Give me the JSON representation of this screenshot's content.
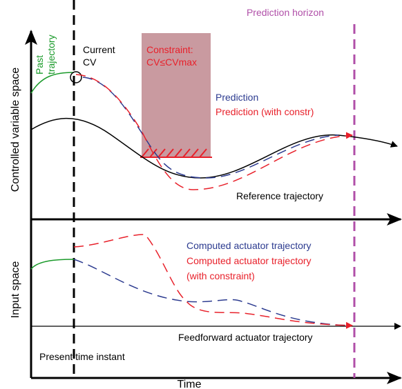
{
  "header": {
    "prediction_horizon": "Prediction horizon"
  },
  "upper_panel": {
    "axis_label": "Controlled variable space",
    "past_trajectory": [
      "Past",
      "trajectory"
    ],
    "current_cv": [
      "Current",
      "CV"
    ],
    "constraint": [
      "Constraint:",
      "CV≤CVmax"
    ],
    "prediction": "Prediction",
    "prediction_with_constr": "Prediction (with constr)",
    "reference_trajectory": "Reference trajectory"
  },
  "lower_panel": {
    "axis_label": "Input space",
    "computed_actuator": "Computed actuator trajectory",
    "computed_actuator_constrained": [
      "Computed actuator trajectory",
      "(with constraint)"
    ],
    "feedforward": "Feedforward actuator trajectory",
    "present_time": "Present time instant"
  },
  "x_axis_label": "Time"
}
